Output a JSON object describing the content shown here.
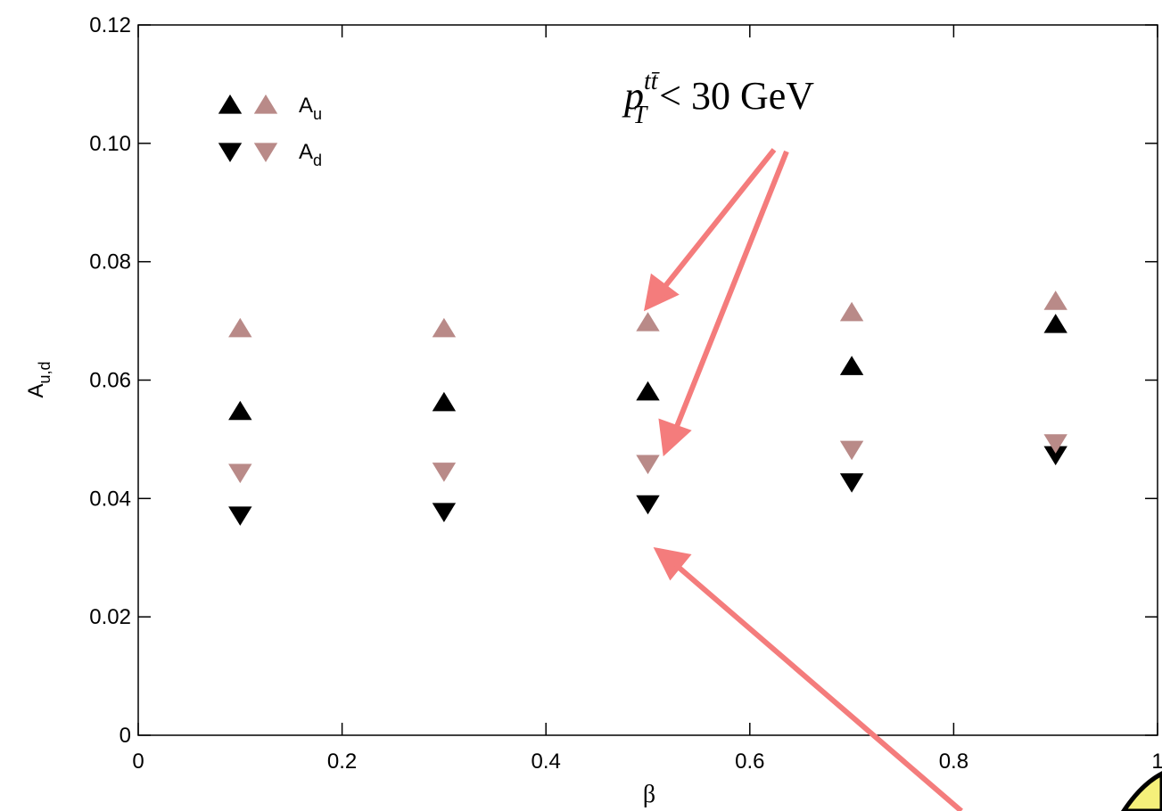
{
  "chart_data": {
    "type": "scatter",
    "x": [
      0.1,
      0.3,
      0.5,
      0.7,
      0.9
    ],
    "series": [
      {
        "name": "A_u",
        "label": "A",
        "sub": "u",
        "marker": "triangle-up",
        "color": "#000000",
        "values": [
          0.0547,
          0.0562,
          0.058,
          0.0623,
          0.0694
        ]
      },
      {
        "name": "A_u",
        "label": "A",
        "sub": "u",
        "marker": "triangle-up",
        "color": "#b98a88",
        "values": [
          0.0687,
          0.0687,
          0.0697,
          0.0714,
          0.0733
        ]
      },
      {
        "name": "A_d",
        "label": "A",
        "sub": "d",
        "marker": "triangle-down",
        "color": "#000000",
        "values": [
          0.0372,
          0.0378,
          0.0391,
          0.0428,
          0.0474
        ]
      },
      {
        "name": "A_d",
        "label": "A",
        "sub": "d",
        "marker": "triangle-down",
        "color": "#b98a88",
        "values": [
          0.0444,
          0.0446,
          0.0459,
          0.0483,
          0.0494
        ]
      }
    ],
    "xlabel": "β",
    "ylabel": {
      "text": "A",
      "sub": "u,d"
    },
    "annotation": {
      "base": "p",
      "sup": "tt̄",
      "sub": "T",
      "text": "< 30 GeV"
    },
    "xlim": [
      0,
      1
    ],
    "ylim": [
      0,
      0.12
    ],
    "xticks": [
      0,
      0.2,
      0.4,
      0.6,
      0.8,
      1
    ],
    "yticks": [
      0,
      0.02,
      0.04,
      0.06,
      {
        "value": 0.1,
        "label": "0.10"
      },
      0.08,
      0.12
    ],
    "legend": "upper left"
  }
}
